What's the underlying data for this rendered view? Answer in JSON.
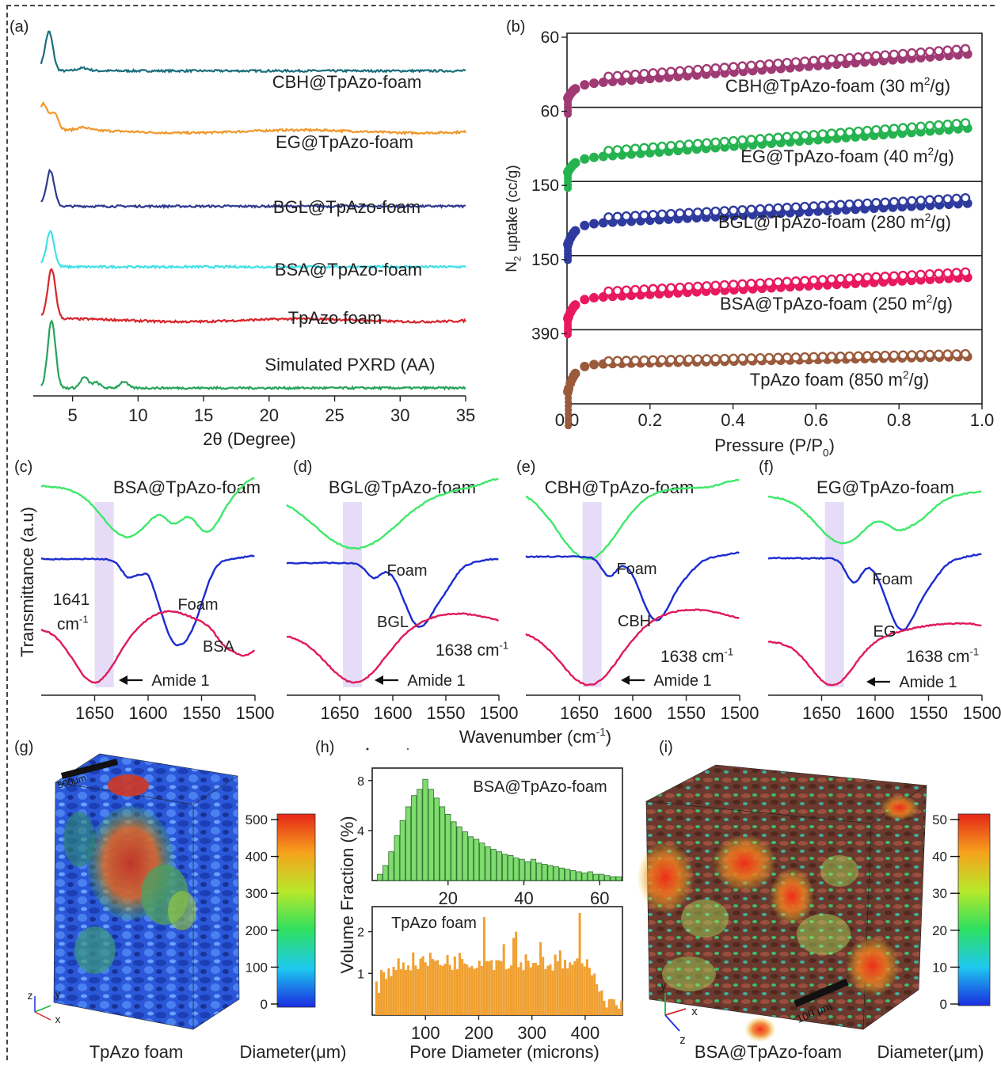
{
  "figure": {
    "panel_labels": [
      "(a)",
      "(b)",
      "(c)",
      "(d)",
      "(e)",
      "(f)",
      "(g)",
      "(h)",
      "(i)"
    ]
  },
  "chart_data": [
    {
      "panel": "(a)",
      "type": "line",
      "xlabel": "2θ (Degree)",
      "xlim": [
        2,
        35
      ],
      "xticks": [
        5,
        10,
        15,
        20,
        25,
        30,
        35
      ],
      "series": [
        {
          "name": "CBH@TpAzo-foam",
          "color": "#1b6e7d",
          "offset": 0.88,
          "peaks": [
            [
              3.2,
              0.11
            ]
          ],
          "base": 0.01
        },
        {
          "name": "EG@TpAzo-foam",
          "color": "#f0972a",
          "offset": 0.7,
          "peaks": [
            [
              2.8,
              0.07
            ],
            [
              3.6,
              0.05
            ]
          ],
          "base": 0.02
        },
        {
          "name": "BGL@TpAzo-foam",
          "color": "#2e3a8f",
          "offset": 0.51,
          "peaks": [
            [
              3.3,
              0.1
            ]
          ],
          "base": 0.0
        },
        {
          "name": "BSA@TpAzo-foam",
          "color": "#3fe0e6",
          "offset": 0.34,
          "peaks": [
            [
              3.3,
              0.1
            ]
          ],
          "base": 0.0
        },
        {
          "name": "TpAzo foam",
          "color": "#d8252b",
          "offset": 0.17,
          "peaks": [
            [
              3.4,
              0.14
            ]
          ],
          "base": 0.02
        },
        {
          "name": "Simulated PXRD (AA)",
          "color": "#27a35a",
          "offset": 0.0,
          "peaks": [
            [
              3.4,
              0.19
            ],
            [
              5.9,
              0.03
            ],
            [
              6.8,
              0.015
            ],
            [
              8.9,
              0.018
            ]
          ],
          "base": 0.0
        }
      ]
    },
    {
      "panel": "(b)",
      "type": "scatter",
      "xlabel": "Pressure (P/P",
      "xlabel_sub": "0",
      "xlabel_tail": ")",
      "ylabel": "N",
      "ylabel_sub": "2",
      "ylabel_tail": " uptake (cc/g)",
      "xlim": [
        0,
        1.0
      ],
      "xticks": [
        0.0,
        0.2,
        0.4,
        0.6,
        0.8,
        1.0
      ],
      "stacks": [
        {
          "label": "CBH@TpAzo-foam (30 m²/g)",
          "top_tick": "60",
          "color": "#a03a74"
        },
        {
          "label": "EG@TpAzo-foam (40 m²/g)",
          "top_tick": "60",
          "color": "#25b350"
        },
        {
          "label": "BGL@TpAzo-foam (280 m²/g)",
          "top_tick": "150",
          "color": "#2e3a9e"
        },
        {
          "label": "BSA@TpAzo-foam (250 m²/g)",
          "top_tick": "150",
          "color": "#e8195e"
        },
        {
          "label": "TpAzo foam (850 m²/g)",
          "top_tick": "390",
          "color": "#9a5a3c"
        }
      ]
    },
    {
      "panel": "(c-f)",
      "type": "line",
      "ylabel": "Transmittance (a.u)",
      "xlabel": "Wavenumber (cm",
      "xlabel_sup": "-1",
      "xlabel_tail": ")",
      "xlim": [
        1700,
        1500
      ],
      "xticks": [
        1650,
        1600,
        1550,
        1500
      ],
      "subplots": [
        {
          "title": "BSA@TpAzo-foam",
          "band": "1641",
          "band_unit": "cm",
          "band_sup": "-1",
          "trace_label": "BSA",
          "foam_label": "Foam",
          "amide_label": "Amide 1"
        },
        {
          "title": "BGL@TpAzo-foam",
          "band": "1638 cm",
          "band_sup": "-1",
          "trace_label": "BGL",
          "foam_label": "Foam",
          "amide_label": "Amide 1"
        },
        {
          "title": "CBH@TpAzo-foam",
          "band": "1638 cm",
          "band_sup": "-1",
          "trace_label": "CBH",
          "foam_label": "Foam",
          "amide_label": "Amide 1"
        },
        {
          "title": "EG@TpAzo-foam",
          "band": "1638 cm",
          "band_sup": "-1",
          "trace_label": "EG",
          "foam_label": "Foam",
          "amide_label": "Amide 1"
        }
      ],
      "colors": {
        "green": "#3ee86a",
        "blue": "#1c2ccf",
        "pink": "#e0195a",
        "band": "#e6dcf7"
      }
    },
    {
      "panel": "(h)",
      "type": "bar",
      "ylabel": "Volume Fraction (%)",
      "xlabel": "Pore Diameter (microns)",
      "top": {
        "legend": "BSA@TpAzo-foam",
        "color": "#7fdc6e",
        "x": [
          2,
          3.5,
          5,
          6.5,
          8,
          9.5,
          11,
          12.5,
          14,
          15.5,
          17,
          18.5,
          20,
          21.5,
          23,
          24.5,
          26,
          27.5,
          29,
          30.5,
          32,
          33.5,
          35,
          36.5,
          38,
          39.5,
          41,
          42.5,
          44,
          45.5,
          47,
          48.5,
          50,
          51.5,
          53,
          54.5,
          56,
          57.5,
          59,
          60.5,
          62,
          63.5,
          65
        ],
        "values": [
          0.5,
          1.2,
          2.3,
          3.6,
          4.8,
          5.9,
          6.8,
          7.3,
          8.1,
          7.3,
          6.6,
          5.9,
          5.3,
          4.7,
          4.3,
          3.9,
          3.5,
          3.3,
          3.0,
          2.7,
          2.5,
          2.3,
          2.1,
          2.0,
          1.8,
          1.7,
          1.5,
          1.7,
          1.4,
          1.3,
          1.2,
          1.1,
          1.0,
          0.9,
          0.8,
          0.7,
          0.6,
          0.7,
          0.5,
          0.5,
          0.4,
          0.3,
          0.3
        ],
        "xlim": [
          0,
          66
        ],
        "ylim": [
          0,
          9
        ],
        "xticks": [
          20,
          40,
          60
        ],
        "yticks": [
          4,
          8
        ]
      },
      "bottom": {
        "legend": "TpAzo foam",
        "color": "#f0a030",
        "xlim": [
          0,
          470
        ],
        "ylim": [
          0,
          2.6
        ],
        "xticks": [
          100,
          200,
          300,
          400
        ],
        "yticks": [
          1,
          2
        ]
      }
    },
    {
      "panel": "(g)",
      "type": "heatmap",
      "caption": "TpAzo foam",
      "colorbar_label": "Diameter(μm)",
      "colorbar_ticks": [
        "0",
        "100",
        "200",
        "300",
        "400",
        "500"
      ],
      "scalebar": "500μm",
      "axes": [
        "z",
        "y",
        "x"
      ]
    },
    {
      "panel": "(i)",
      "type": "heatmap",
      "caption": "BSA@TpAzo-foam",
      "colorbar_label": "Diameter(μm)",
      "colorbar_ticks": [
        "0",
        "10",
        "20",
        "30",
        "40",
        "50"
      ],
      "scalebar": "100 μm",
      "axes": [
        "y",
        "x",
        "z"
      ]
    }
  ]
}
